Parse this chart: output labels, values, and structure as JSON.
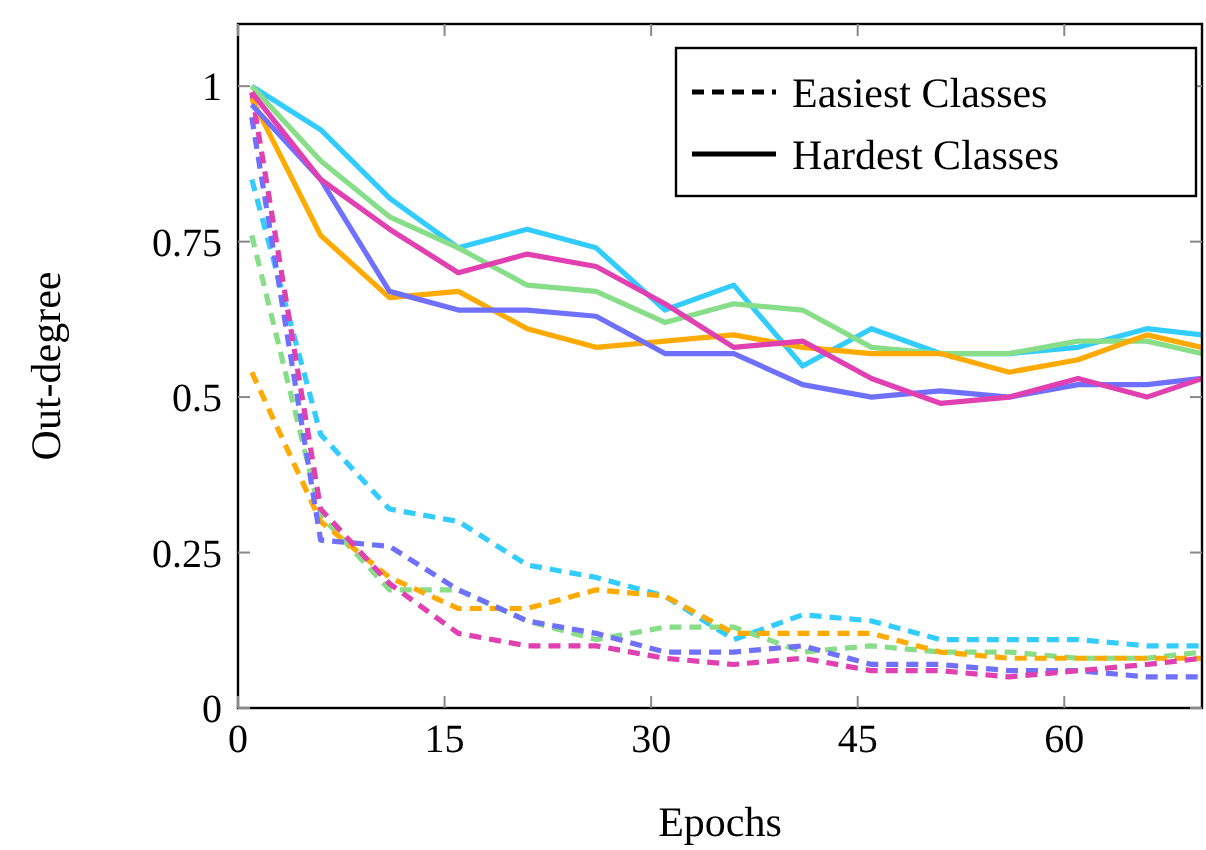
{
  "chart_data": {
    "type": "line",
    "xlabel": "Epochs",
    "ylabel": "Out-degree",
    "x": [
      1,
      6,
      11,
      16,
      21,
      26,
      31,
      36,
      41,
      46,
      51,
      56,
      61,
      66,
      70
    ],
    "xlim": [
      0,
      70
    ],
    "ylim": [
      0,
      1.1
    ],
    "xticks": [
      0,
      15,
      30,
      45,
      60
    ],
    "yticks": [
      0,
      0.25,
      0.5,
      0.75,
      1
    ],
    "grid": false,
    "marker": "none",
    "annotations": [
      "Easiest Classes",
      "Hardest Classes"
    ],
    "series": [
      {
        "line_style": "dashed",
        "color": "#33ccff",
        "values": [
          0.85,
          0.44,
          0.32,
          0.3,
          0.23,
          0.21,
          0.18,
          0.11,
          0.15,
          0.14,
          0.11,
          0.11,
          0.11,
          0.1,
          0.1
        ]
      },
      {
        "line_style": "dashed",
        "color": "#88dd88",
        "values": [
          0.76,
          0.31,
          0.19,
          0.19,
          0.14,
          0.11,
          0.13,
          0.13,
          0.09,
          0.1,
          0.09,
          0.09,
          0.08,
          0.08,
          0.09
        ]
      },
      {
        "line_style": "dashed",
        "color": "#ffaa00",
        "values": [
          0.54,
          0.3,
          0.21,
          0.16,
          0.16,
          0.19,
          0.18,
          0.12,
          0.12,
          0.12,
          0.09,
          0.08,
          0.08,
          0.08,
          0.08
        ]
      },
      {
        "line_style": "dashed",
        "color": "#7070ff",
        "values": [
          0.95,
          0.27,
          0.26,
          0.19,
          0.14,
          0.12,
          0.09,
          0.09,
          0.1,
          0.07,
          0.07,
          0.06,
          0.06,
          0.05,
          0.05
        ]
      },
      {
        "line_style": "dashed",
        "color": "#e040b0",
        "values": [
          0.99,
          0.32,
          0.2,
          0.12,
          0.1,
          0.1,
          0.08,
          0.07,
          0.08,
          0.06,
          0.06,
          0.05,
          0.06,
          0.07,
          0.08
        ]
      },
      {
        "line_style": "solid",
        "color": "#33ccff",
        "values": [
          1.0,
          0.93,
          0.82,
          0.74,
          0.77,
          0.74,
          0.64,
          0.68,
          0.55,
          0.61,
          0.57,
          0.57,
          0.58,
          0.61,
          0.6
        ]
      },
      {
        "line_style": "solid",
        "color": "#88dd88",
        "values": [
          1.0,
          0.88,
          0.79,
          0.74,
          0.68,
          0.67,
          0.62,
          0.65,
          0.64,
          0.58,
          0.57,
          0.57,
          0.59,
          0.59,
          0.57
        ]
      },
      {
        "line_style": "solid",
        "color": "#ffaa00",
        "values": [
          0.98,
          0.76,
          0.66,
          0.67,
          0.61,
          0.58,
          0.59,
          0.6,
          0.58,
          0.57,
          0.57,
          0.54,
          0.56,
          0.6,
          0.58
        ]
      },
      {
        "line_style": "solid",
        "color": "#7070ff",
        "values": [
          0.97,
          0.85,
          0.67,
          0.64,
          0.64,
          0.63,
          0.57,
          0.57,
          0.52,
          0.5,
          0.51,
          0.5,
          0.52,
          0.52,
          0.53
        ]
      },
      {
        "line_style": "solid",
        "color": "#e040b0",
        "values": [
          0.99,
          0.85,
          0.77,
          0.7,
          0.73,
          0.71,
          0.65,
          0.58,
          0.59,
          0.53,
          0.49,
          0.5,
          0.53,
          0.5,
          0.53
        ]
      }
    ]
  }
}
